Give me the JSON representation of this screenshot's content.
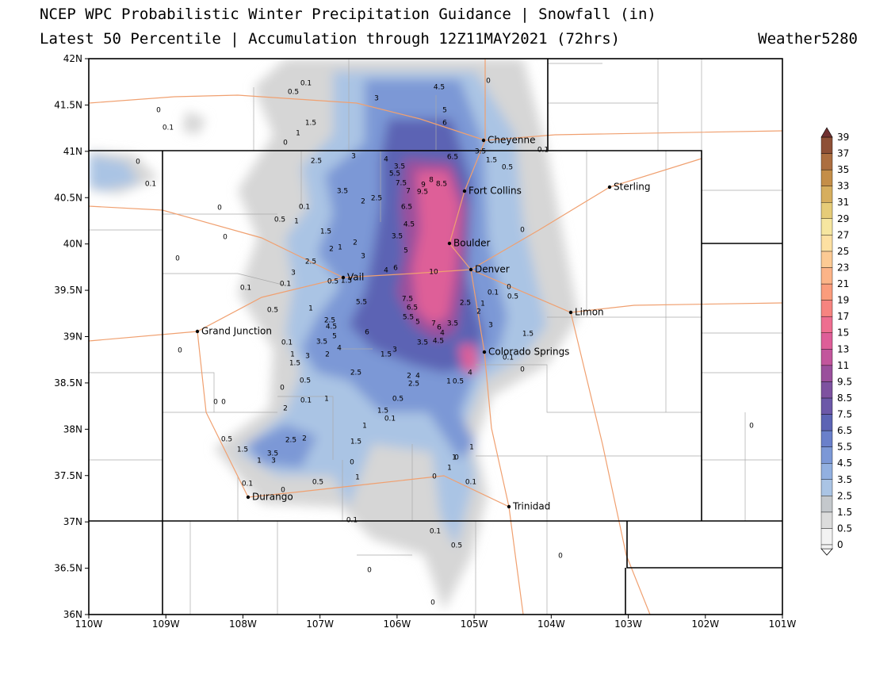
{
  "header": {
    "title": "NCEP WPC Probabilistic Winter Precipitation Guidance | Snowfall (in)",
    "subtitle": "Latest 50 Percentile | Accumulation through 12Z11MAY2021 (72hrs)",
    "credit": "Weather5280"
  },
  "map": {
    "lat_ticks": [
      {
        "value": 36,
        "label": "36N"
      },
      {
        "value": 36.5,
        "label": "36.5N"
      },
      {
        "value": 37,
        "label": "37N"
      },
      {
        "value": 37.5,
        "label": "37.5N"
      },
      {
        "value": 38,
        "label": "38N"
      },
      {
        "value": 38.5,
        "label": "38.5N"
      },
      {
        "value": 39,
        "label": "39N"
      },
      {
        "value": 39.5,
        "label": "39.5N"
      },
      {
        "value": 40,
        "label": "40N"
      },
      {
        "value": 40.5,
        "label": "40.5N"
      },
      {
        "value": 41,
        "label": "41N"
      },
      {
        "value": 41.5,
        "label": "41.5N"
      },
      {
        "value": 42,
        "label": "42N"
      }
    ],
    "lon_ticks": [
      {
        "value": 110,
        "label": "110W"
      },
      {
        "value": 109,
        "label": "109W"
      },
      {
        "value": 108,
        "label": "108W"
      },
      {
        "value": 107,
        "label": "107W"
      },
      {
        "value": 106,
        "label": "106W"
      },
      {
        "value": 105,
        "label": "105W"
      },
      {
        "value": 104,
        "label": "104W"
      },
      {
        "value": 103,
        "label": "103W"
      },
      {
        "value": 102,
        "label": "102W"
      },
      {
        "value": 101,
        "label": "101W"
      }
    ],
    "cities": [
      "Cheyenne",
      "Fort Collins",
      "Sterling",
      "Boulder",
      "Denver",
      "Vail",
      "Limon",
      "Grand Junction",
      "Colorado Springs",
      "Durango",
      "Trinidad"
    ],
    "contour_labels": [
      "4.5",
      "5",
      "6",
      "3",
      "0",
      "0.1",
      "0.5",
      "0",
      "0.1",
      "1.5",
      "1",
      "0",
      "6.5",
      "3.5",
      "1.5",
      "0.5",
      "0.1",
      "0",
      "0.1",
      "2.5",
      "3",
      "4",
      "3.5",
      "5.5",
      "7.5",
      "7",
      "9",
      "8",
      "8.5",
      "9.5",
      "3.5",
      "2",
      "2.5",
      "6.5",
      "0",
      "0.1",
      "0.5",
      "1",
      "4.5",
      "1.5",
      "0",
      "0",
      "3.5",
      "2",
      "2",
      "1",
      "5",
      "0",
      "3",
      "2.5",
      "6",
      "4",
      "10",
      "3",
      "0.5",
      "1.5",
      "0.1",
      "0.1",
      "0",
      "0.1",
      "0.5",
      "5.5",
      "7.5",
      "6.5",
      "2.5",
      "1",
      "2",
      "0.5",
      "1",
      "5.5",
      "5",
      "7",
      "6",
      "3.5",
      "2.5",
      "4.5",
      "5",
      "6",
      "3",
      "1.5",
      "4",
      "4.5",
      "3.5",
      "3.5",
      "4",
      "0.1",
      "3",
      "1.5",
      "1",
      "3",
      "2",
      "0.1",
      "1.5",
      "0",
      "0",
      "2.5",
      "2",
      "4",
      "4",
      "2.5",
      "1",
      "0.5",
      "0.5",
      "0",
      "0",
      "0",
      "0.1",
      "1",
      "0.5",
      "2",
      "1.5",
      "0.1",
      "1",
      "2.5",
      "2",
      "1.5",
      "0.5",
      "1.5",
      "3.5",
      "1",
      "3",
      "1",
      "1",
      "0",
      "1",
      "0",
      "1",
      "0",
      "0.1",
      "0.1",
      "0",
      "0.5",
      "0.1",
      "0.1",
      "0.5",
      "0",
      "0",
      "0",
      "0"
    ]
  },
  "colorbar": {
    "levels": [
      0,
      0.5,
      1.5,
      2.5,
      3.5,
      4.5,
      5.5,
      6.5,
      7.5,
      8.5,
      9.5,
      11,
      13,
      15,
      17,
      19,
      21,
      23,
      25,
      27,
      29,
      31,
      33,
      35,
      37,
      39
    ],
    "colors": [
      "#f2f2f2",
      "#dcdcdc",
      "#c4c8cc",
      "#aac4e4",
      "#92b0e0",
      "#7c98d6",
      "#6a80ca",
      "#5c64b4",
      "#6c58a8",
      "#7e52a0",
      "#9a509c",
      "#c2569c",
      "#de5e98",
      "#ee6e90",
      "#f68480",
      "#fa9c7c",
      "#fcb488",
      "#fcca94",
      "#fde0a2",
      "#f6e6a0",
      "#e6cc78",
      "#d6ae5e",
      "#c48e48",
      "#ac6e40",
      "#8e5036",
      "#703030"
    ]
  }
}
